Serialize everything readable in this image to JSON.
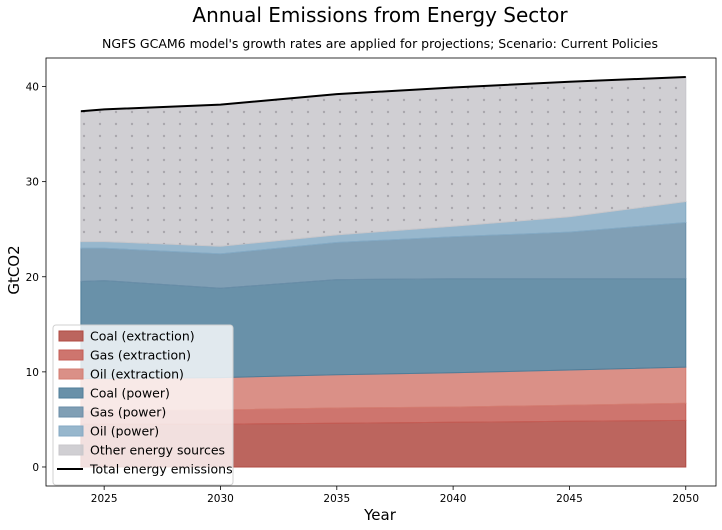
{
  "chart_data": {
    "type": "area",
    "title": "Annual Emissions from Energy Sector",
    "subtitle": "NGFS GCAM6 model's growth rates are applied for projections; Scenario: Current Policies",
    "xlabel": "Year",
    "ylabel": "GtCO2",
    "xlim": [
      2022.5,
      2051.3
    ],
    "ylim": [
      -2,
      43
    ],
    "xticks": [
      2025,
      2030,
      2035,
      2040,
      2045,
      2050
    ],
    "yticks": [
      0,
      10,
      20,
      30,
      40
    ],
    "stacked": true,
    "x": [
      2024,
      2025,
      2030,
      2035,
      2040,
      2045,
      2050
    ],
    "series": [
      {
        "name": "Coal (extraction)",
        "color": "#b04a42",
        "values": [
          4.5,
          4.5,
          4.5,
          4.6,
          4.7,
          4.8,
          4.9
        ]
      },
      {
        "name": "Gas (extraction)",
        "color": "#c55d55",
        "values": [
          1.4,
          1.4,
          1.5,
          1.6,
          1.6,
          1.7,
          1.8
        ]
      },
      {
        "name": "Oil (extraction)",
        "color": "#d47d72",
        "values": [
          3.4,
          3.4,
          3.4,
          3.5,
          3.6,
          3.7,
          3.8
        ]
      },
      {
        "name": "Coal (power)",
        "color": "#4f7e9a",
        "values": [
          10.2,
          10.3,
          9.4,
          10.0,
          9.9,
          9.6,
          9.3
        ]
      },
      {
        "name": "Gas (power)",
        "color": "#6a8ea8",
        "values": [
          3.5,
          3.4,
          3.6,
          3.9,
          4.4,
          4.9,
          5.9
        ]
      },
      {
        "name": "Oil (power)",
        "color": "#85aac4",
        "values": [
          0.7,
          0.7,
          0.8,
          0.8,
          1.1,
          1.6,
          2.2
        ]
      },
      {
        "name": "Other energy sources",
        "color": "#c8c7cb",
        "values": [
          13.7,
          13.9,
          14.9,
          14.8,
          14.6,
          14.2,
          13.1
        ]
      }
    ],
    "total": {
      "name": "Total energy emissions",
      "color": "#000000",
      "values": [
        37.4,
        37.6,
        38.1,
        39.2,
        39.9,
        40.5,
        41.0
      ]
    },
    "legend": "lower-left",
    "grid": false
  }
}
